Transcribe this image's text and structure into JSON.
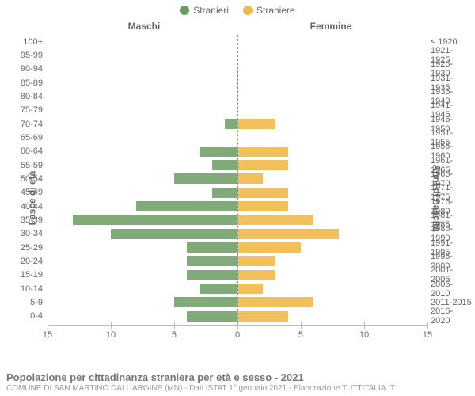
{
  "legend": {
    "male": "Stranieri",
    "female": "Straniere"
  },
  "colors": {
    "male": "#6a9b5f",
    "female": "#efb94b",
    "axis": "#bbbbbb",
    "text": "#666666",
    "zero_dash": "#888888",
    "bg": "#ffffff"
  },
  "headers": {
    "left": "Maschi",
    "right": "Femmine"
  },
  "axis_titles": {
    "left": "Fasce di età",
    "right": "Anni di nascita"
  },
  "chart": {
    "type": "pyramid-bar",
    "xlim": 15,
    "xticks": [
      15,
      10,
      5,
      0,
      5,
      10,
      15
    ],
    "bar_height_ratio": 0.75
  },
  "rows": [
    {
      "age": "100+",
      "birth": "≤ 1920",
      "m": 0,
      "f": 0
    },
    {
      "age": "95-99",
      "birth": "1921-1925",
      "m": 0,
      "f": 0
    },
    {
      "age": "90-94",
      "birth": "1926-1930",
      "m": 0,
      "f": 0
    },
    {
      "age": "85-89",
      "birth": "1931-1935",
      "m": 0,
      "f": 0
    },
    {
      "age": "80-84",
      "birth": "1936-1940",
      "m": 0,
      "f": 0
    },
    {
      "age": "75-79",
      "birth": "1941-1945",
      "m": 0,
      "f": 0
    },
    {
      "age": "70-74",
      "birth": "1946-1950",
      "m": 1,
      "f": 3
    },
    {
      "age": "65-69",
      "birth": "1951-1955",
      "m": 0,
      "f": 0
    },
    {
      "age": "60-64",
      "birth": "1956-1960",
      "m": 3,
      "f": 4
    },
    {
      "age": "55-59",
      "birth": "1961-1965",
      "m": 2,
      "f": 4
    },
    {
      "age": "50-54",
      "birth": "1966-1970",
      "m": 5,
      "f": 2
    },
    {
      "age": "45-49",
      "birth": "1971-1975",
      "m": 2,
      "f": 4
    },
    {
      "age": "40-44",
      "birth": "1976-1980",
      "m": 8,
      "f": 4
    },
    {
      "age": "35-39",
      "birth": "1981-1985",
      "m": 13,
      "f": 6
    },
    {
      "age": "30-34",
      "birth": "1986-1990",
      "m": 10,
      "f": 8
    },
    {
      "age": "25-29",
      "birth": "1991-1995",
      "m": 4,
      "f": 5
    },
    {
      "age": "20-24",
      "birth": "1996-2000",
      "m": 4,
      "f": 3
    },
    {
      "age": "15-19",
      "birth": "2001-2005",
      "m": 4,
      "f": 3
    },
    {
      "age": "10-14",
      "birth": "2006-2010",
      "m": 3,
      "f": 2
    },
    {
      "age": "5-9",
      "birth": "2011-2015",
      "m": 5,
      "f": 6
    },
    {
      "age": "0-4",
      "birth": "2016-2020",
      "m": 4,
      "f": 4
    }
  ],
  "footer": {
    "title": "Popolazione per cittadinanza straniera per età e sesso - 2021",
    "sub": "COMUNE DI SAN MARTINO DALL'ARGINE (MN) - Dati ISTAT 1° gennaio 2021 - Elaborazione TUTTITALIA.IT"
  }
}
